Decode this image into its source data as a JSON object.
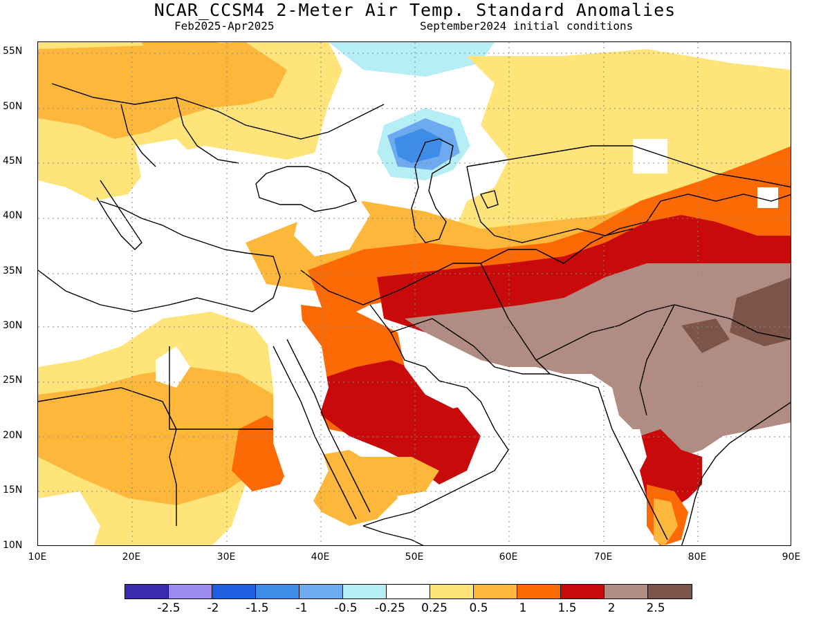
{
  "title": "NCAR_CCSM4 2-Meter Air Temp. Standard Anomalies",
  "subtitle_left": "Feb2025-Apr2025",
  "subtitle_right": "September2024 initial conditions",
  "lat_labels": [
    "55N",
    "50N",
    "45N",
    "40N",
    "35N",
    "30N",
    "25N",
    "20N",
    "15N",
    "10N"
  ],
  "lon_labels": [
    "10E",
    "20E",
    "30E",
    "40E",
    "50E",
    "60E",
    "70E",
    "80E",
    "90E"
  ],
  "legend": {
    "colors": [
      "#3a2bb0",
      "#9c8cf2",
      "#2060e0",
      "#3c8ce8",
      "#6eaaf0",
      "#b6eef6",
      "#ffffff",
      "#ffe47a",
      "#fdb83c",
      "#fc6a05",
      "#c80a0a",
      "#b08c82",
      "#7c5448"
    ],
    "labels": [
      "-2.5",
      "-2",
      "-1.5",
      "-1",
      "-0.5",
      "-0.25",
      "0.25",
      "0.5",
      "1",
      "1.5",
      "2",
      "2.5"
    ]
  },
  "map_colors": {
    "neg025": "#b6eef6",
    "neg05": "#6eaaf0",
    "neg1": "#3c8ce8",
    "pos025": "#ffe47a",
    "pos05": "#fdb83c",
    "pos1": "#fc6a05",
    "pos15": "#c80a0a",
    "pos2": "#b08c82",
    "pos25": "#7c5448"
  }
}
